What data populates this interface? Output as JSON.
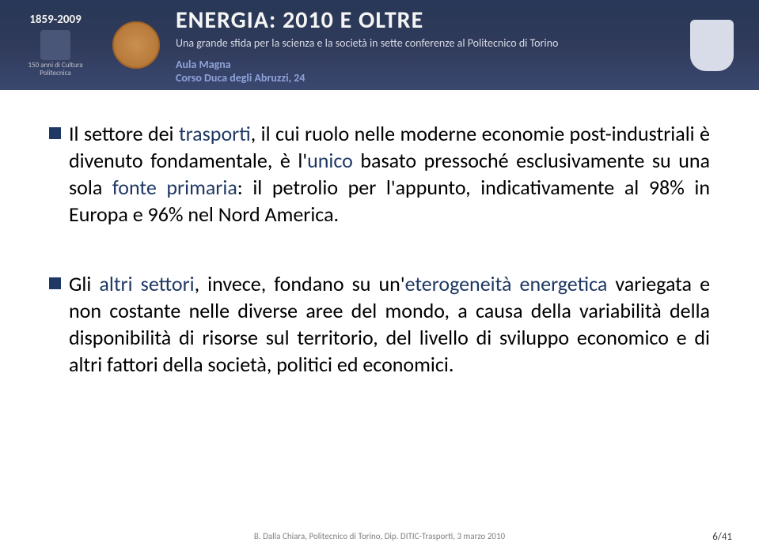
{
  "header": {
    "years": "1859-2009",
    "cultura_line1": "150 anni di Cultura",
    "cultura_line2": "Politecnica",
    "main_title": "ENERGIA: 2010 E OLTRE",
    "subtitle": "Una grande sfida per la scienza e la società in sette conferenze al Politecnico di Torino",
    "venue1": "Aula Magna",
    "venue2": "Corso Duca degli Abruzzi, 24"
  },
  "content": {
    "para1_pre": "Il settore dei ",
    "para1_blue1": "trasporti",
    "para1_mid1": ", il cui ruolo nelle moderne economie post-industriali è divenuto fondamentale, è l'",
    "para1_blue2": "unico",
    "para1_mid2": " basato pressoché esclusivamente su una sola ",
    "para1_blue3": "fonte primaria",
    "para1_mid3": ": il petrolio per l'appunto, indicativamente al 98% in Europa e 96% nel Nord America.",
    "para2_pre": "Gli ",
    "para2_blue1": "altri settori",
    "para2_mid1": ", invece, fondano su un'",
    "para2_blue2": "eterogeneità",
    "para2_mid2": " ",
    "para2_blue3": "energetica",
    "para2_mid3": " variegata e non costante nelle diverse aree del mondo, a causa della variabilità della disponibilità di risorse sul territorio, del livello di sviluppo economico e di altri fattori della società, politici ed economici."
  },
  "footer": {
    "text": "B. Dalla Chiara, Politecnico di Torino, Dip. DITIC-Trasporti, 3 marzo 2010",
    "page": "6/41"
  }
}
